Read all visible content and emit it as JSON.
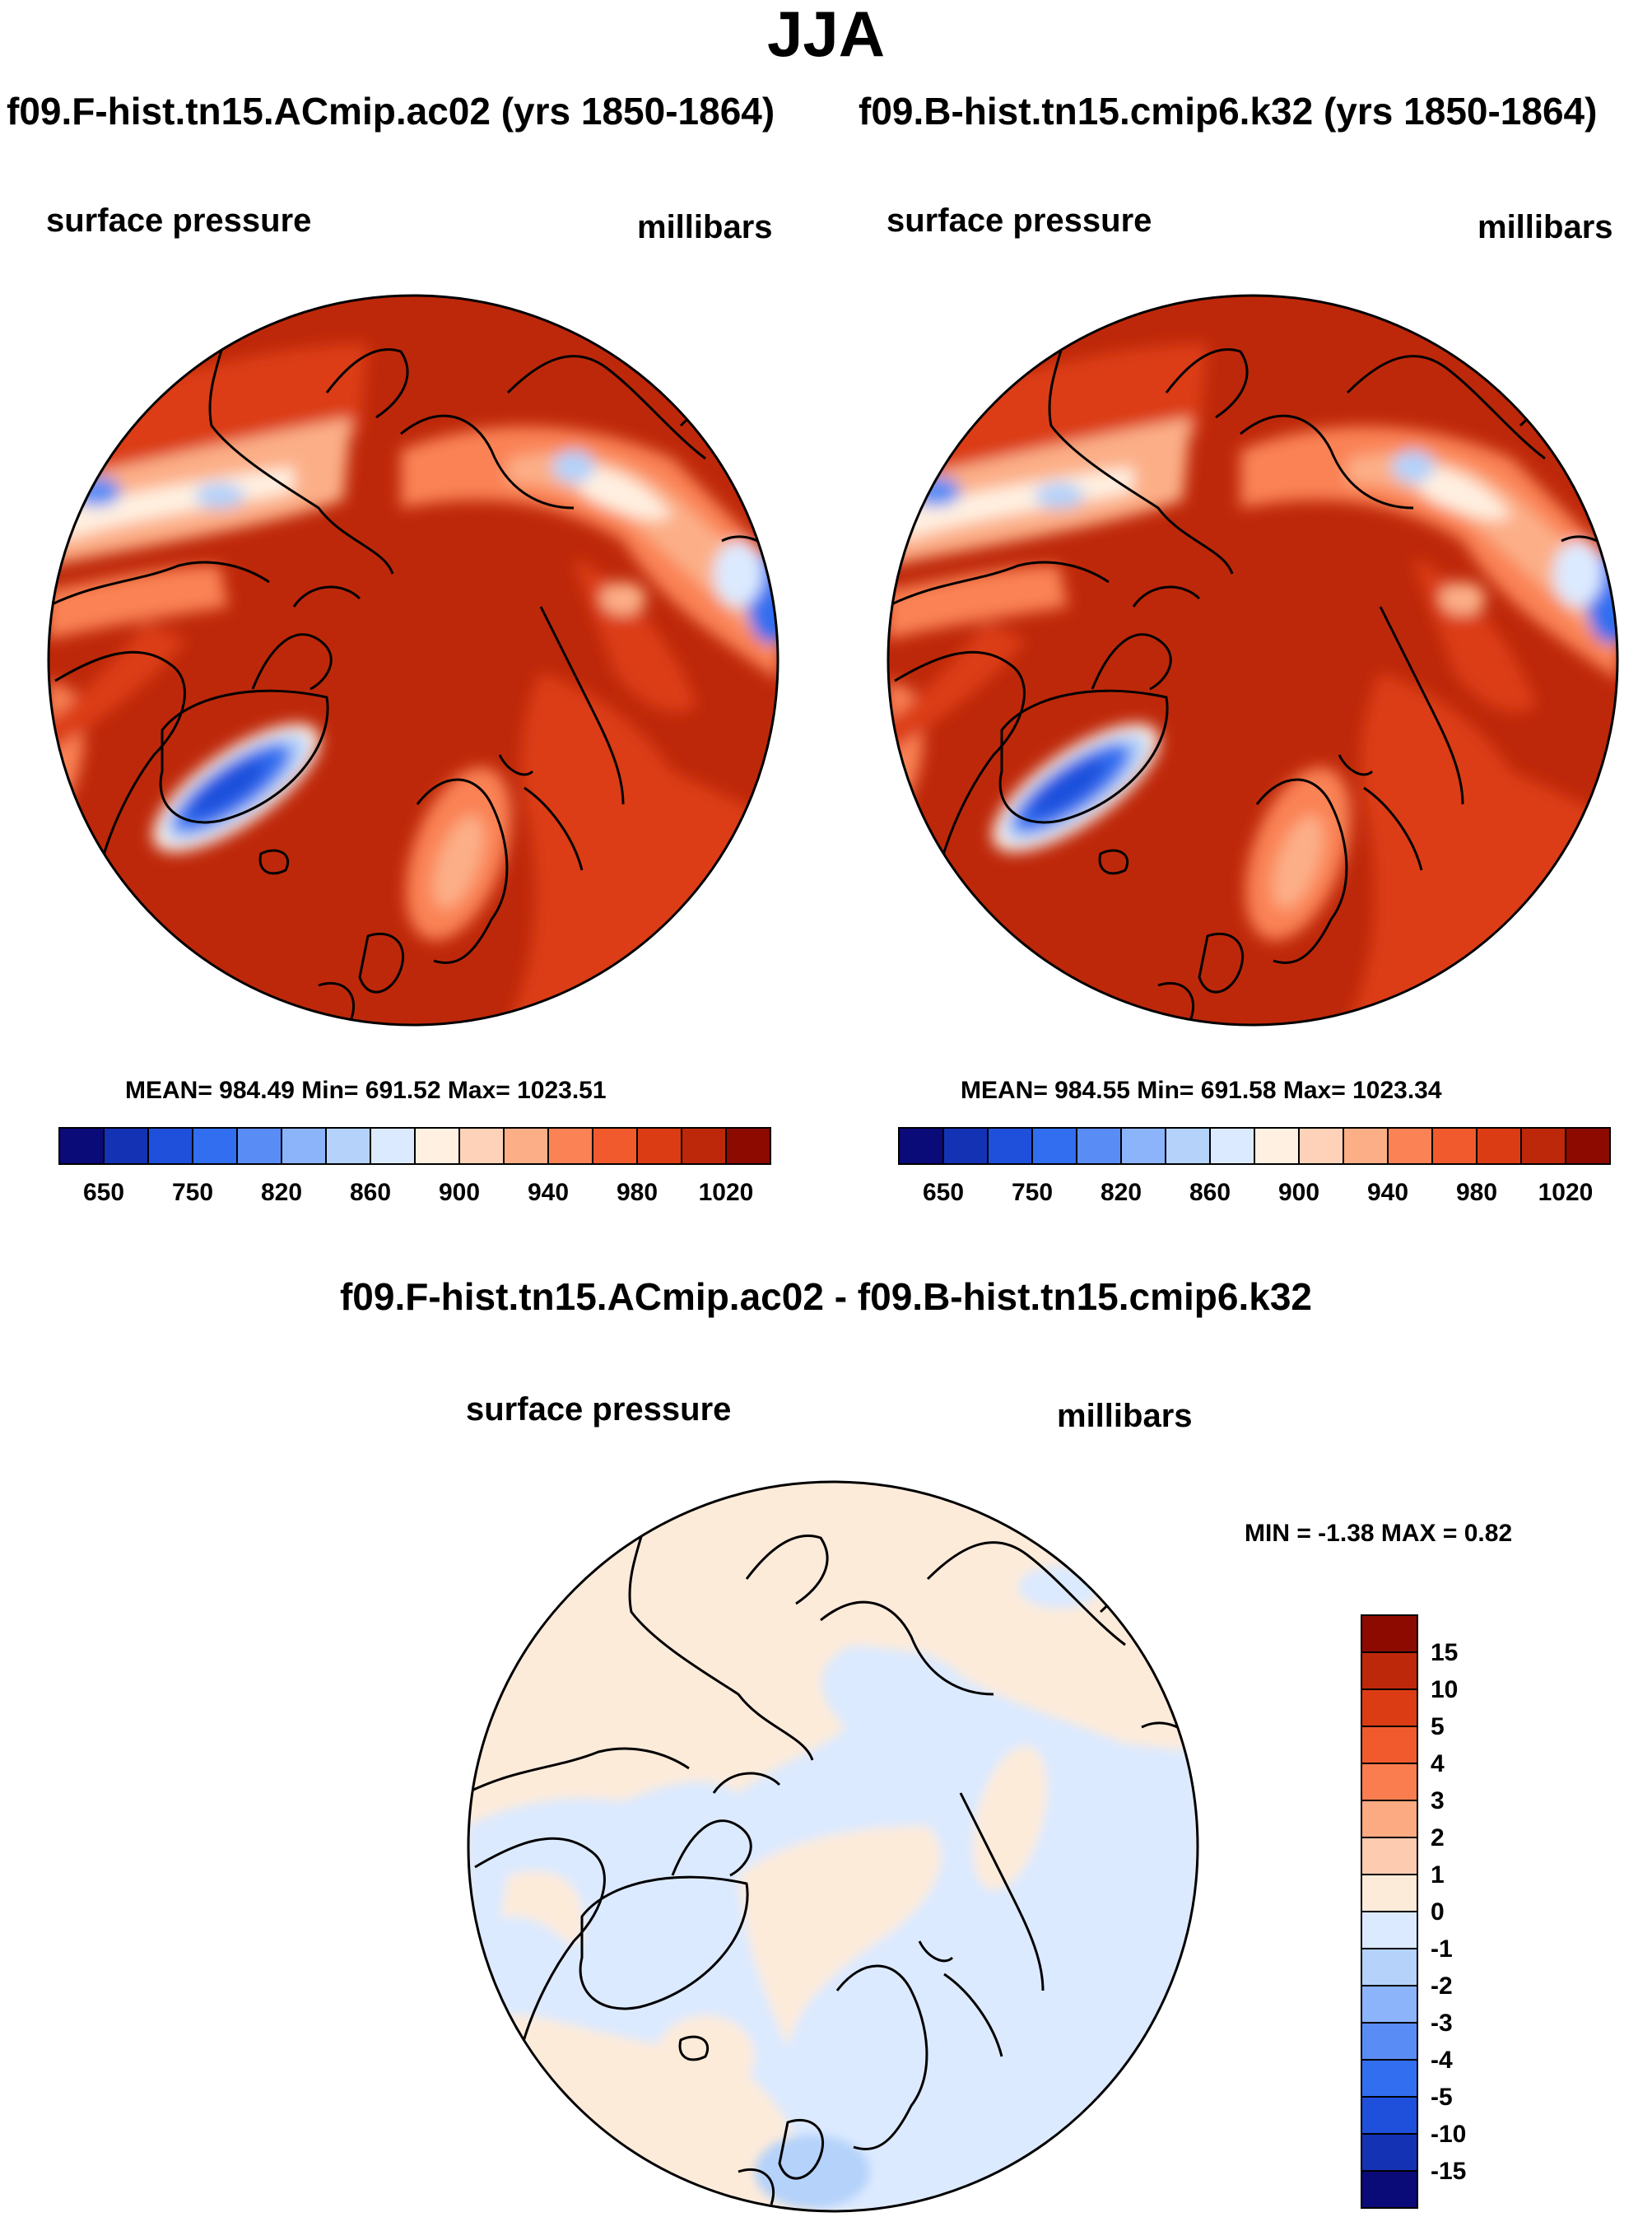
{
  "main_title": "JJA",
  "panel_a": {
    "title": "f09.F-hist.tn15.ACmip.ac02 (yrs 1850-1864)",
    "variable": "surface pressure",
    "units": "millibars",
    "stats": "MEAN= 984.49  Min= 691.52  Max= 1023.51"
  },
  "panel_b": {
    "title": "f09.B-hist.tn15.cmip6.k32 (yrs 1850-1864)",
    "variable": "surface pressure",
    "units": "millibars",
    "stats": "MEAN= 984.55  Min= 691.58  Max= 1023.34"
  },
  "diff_panel": {
    "title": "f09.F-hist.tn15.ACmip.ac02 - f09.B-hist.tn15.cmip6.k32",
    "variable": "surface pressure",
    "units": "millibars",
    "minmax": "MIN =  -1.38 MAX =   0.82"
  },
  "colorbar_abs": {
    "colors": [
      "#0a0a78",
      "#1432b4",
      "#1e50dc",
      "#326ef0",
      "#5a8cf5",
      "#8cb4fa",
      "#b4d2fa",
      "#dceaff",
      "#fff0e1",
      "#fdd2b9",
      "#fcaf87",
      "#fa8255",
      "#f05a2d",
      "#dc3c14",
      "#be280a",
      "#8c0a00"
    ],
    "tick_labels": [
      "650",
      "750",
      "820",
      "860",
      "900",
      "940",
      "980",
      "1020"
    ]
  },
  "colorbar_diff": {
    "colors": [
      "#0a0a78",
      "#1432b4",
      "#1e50dc",
      "#326ef0",
      "#5a8cf5",
      "#8cb4fa",
      "#b4d2fa",
      "#dceaff",
      "#fdebda",
      "#fdcbb0",
      "#fcaa82",
      "#fa7d50",
      "#f05a2d",
      "#dc3c14",
      "#be280a",
      "#8c0a00"
    ],
    "tick_labels": [
      "-15",
      "-10",
      "-5",
      "-4",
      "-3",
      "-2",
      "-1",
      "0",
      "1",
      "2",
      "3",
      "4",
      "5",
      "10",
      "15"
    ]
  },
  "chart_data": {
    "type": "heatmap",
    "projection": "north polar stereographic",
    "season": "JJA",
    "variable": "surface pressure",
    "units": "millibars",
    "panels": [
      {
        "name": "f09.F-hist.tn15.ACmip.ac02 (yrs 1850-1864)",
        "mean": 984.49,
        "min": 691.52,
        "max": 1023.51,
        "levels": [
          650,
          700,
          750,
          800,
          820,
          840,
          860,
          880,
          900,
          920,
          940,
          960,
          980,
          1000,
          1020
        ]
      },
      {
        "name": "f09.B-hist.tn15.cmip6.k32 (yrs 1850-1864)",
        "mean": 984.55,
        "min": 691.58,
        "max": 1023.34,
        "levels": [
          650,
          700,
          750,
          800,
          820,
          840,
          860,
          880,
          900,
          920,
          940,
          960,
          980,
          1000,
          1020
        ]
      },
      {
        "name": "f09.F-hist.tn15.ACmip.ac02 - f09.B-hist.tn15.cmip6.k32",
        "min": -1.38,
        "max": 0.82,
        "levels": [
          -15,
          -10,
          -5,
          -4,
          -3,
          -2,
          -1,
          0,
          1,
          2,
          3,
          4,
          5,
          10,
          15
        ]
      }
    ]
  }
}
